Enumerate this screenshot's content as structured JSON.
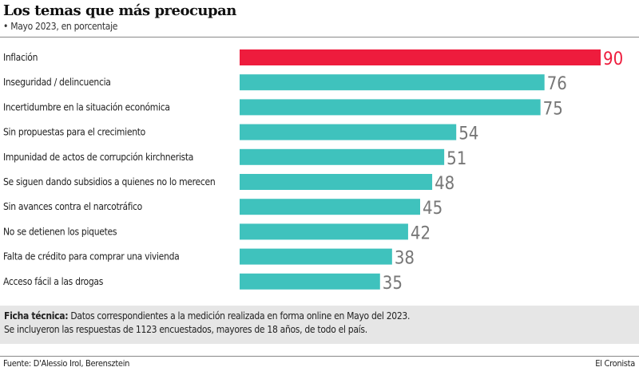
{
  "chart_data": {
    "type": "bar",
    "orientation": "horizontal",
    "title": "Los temas que más preocupan",
    "subtitle": "• Mayo 2023, en porcentaje",
    "categories": [
      "Inflación",
      "Inseguridad / delincuencia",
      "Incertidumbre en la situación económica",
      "Sin propuestas para el crecimiento",
      "Impunidad de actos de corrupción kirchnerista",
      "Se siguen dando subsidios a quienes no lo merecen",
      "Sin avances contra el narcotráfico",
      "No se detienen los piquetes",
      "Falta de crédito para comprar una vivienda",
      "Acceso fácil a las drogas"
    ],
    "values": [
      90,
      76,
      75,
      54,
      51,
      48,
      45,
      42,
      38,
      35
    ],
    "xlim": [
      0,
      90
    ],
    "grid": false,
    "colors": {
      "highlight": "#ee1c3d",
      "bar": "#3fc2bd",
      "highlight_label": "#ee1c3d",
      "label": "#777777"
    }
  },
  "note": {
    "bold": "Ficha técnica:",
    "line1": " Datos correspondientes a la medición realizada en forma online en Mayo del 2023.",
    "line2": "Se incluyeron las respuestas de 1123 encuestados, mayores de 18 años, de todo el país."
  },
  "footer": {
    "source": "Fuente: D'Alessio Irol, Berensztein",
    "brand": "El Cronista"
  }
}
